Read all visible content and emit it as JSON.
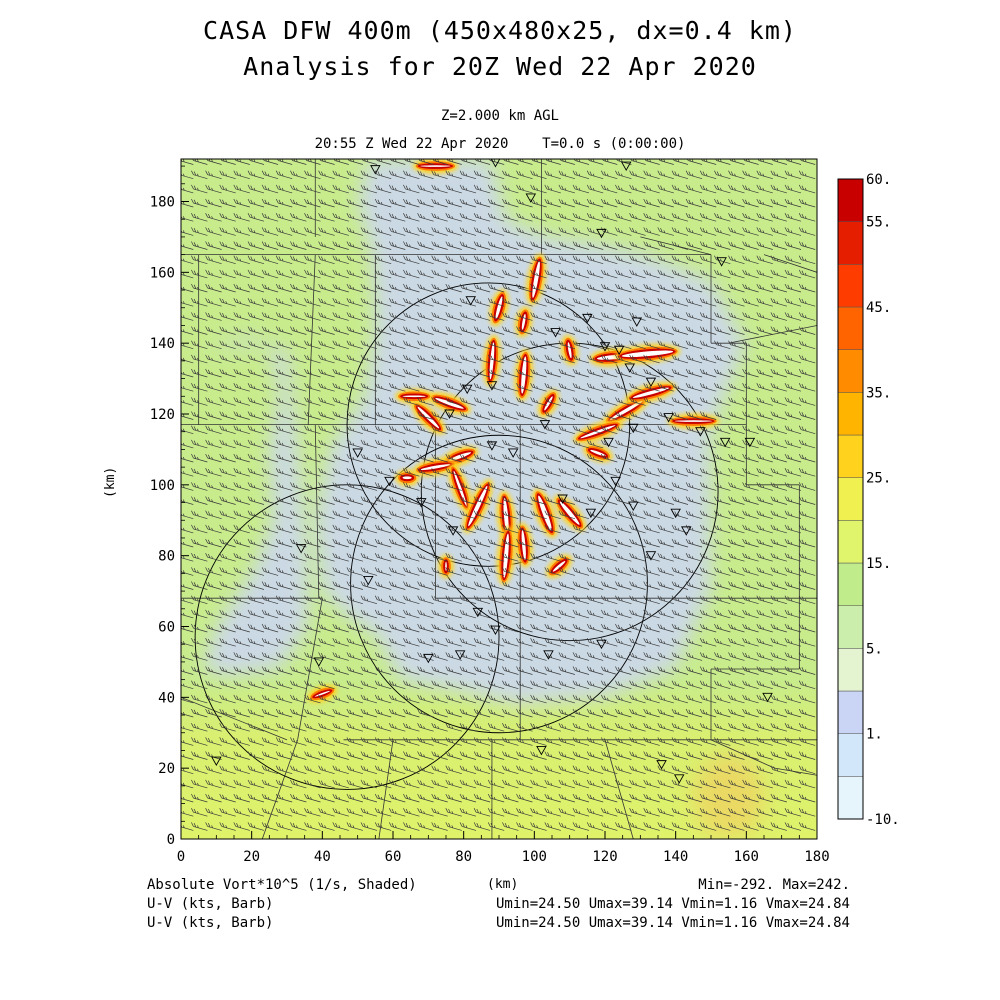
{
  "header": {
    "title_line1": "CASA DFW 400m (450x480x25, dx=0.4 km)",
    "title_line2": "Analysis for 20Z Wed 22 Apr 2020",
    "level": "Z=2.000 km AGL",
    "time": "20:55 Z Wed 22 Apr 2020    T=0.0 s (0:00:00)"
  },
  "footer": {
    "line1_left": "Absolute Vort*10^5 (1/s, Shaded)",
    "line1_right": "Min=-292. Max=242.",
    "line2_left": "U-V (kts, Barb)",
    "line2_right": "Umin=24.50 Umax=39.14 Vmin=1.16 Vmax=24.84",
    "line3_left": "U-V (kts, Barb)",
    "line3_right": "Umin=24.50 Umax=39.14 Vmin=1.16 Vmax=24.84"
  },
  "colors": {
    "bg_field": "#c8ec8c",
    "low_field": "#ccd6f4",
    "south_field": "#dcf06a",
    "hot": "#c80000",
    "warm": "#ff7a00",
    "barb": "#3a3a3a"
  },
  "chart_data": {
    "type": "heatmap",
    "xlabel": "(km)",
    "ylabel": "(km)",
    "xlim": [
      0,
      180
    ],
    "ylim": [
      0,
      192
    ],
    "xticks": [
      0,
      20,
      40,
      60,
      80,
      100,
      120,
      140,
      160,
      180
    ],
    "yticks": [
      0,
      20,
      40,
      60,
      80,
      100,
      120,
      140,
      160,
      180
    ],
    "colorbar": {
      "labels": [
        "60.",
        "55.",
        "45.",
        "35.",
        "25.",
        "15.",
        "5.",
        "1.",
        "-10."
      ],
      "label_values": [
        60,
        55,
        45,
        35,
        25,
        15,
        5,
        1,
        -10
      ],
      "levels": [
        -10,
        -5,
        1,
        3,
        5,
        10,
        15,
        20,
        25,
        30,
        35,
        40,
        45,
        50,
        55,
        60
      ],
      "colors": [
        "#e6f4fc",
        "#d2e8fa",
        "#cad4f4",
        "#e4f4d0",
        "#cbeeac",
        "#c0ec8c",
        "#e0f46c",
        "#f0f050",
        "#ffd21e",
        "#ffb400",
        "#ff8c00",
        "#ff6400",
        "#ff3c00",
        "#e61e00",
        "#c80000"
      ]
    },
    "radar_rings": [
      {
        "cx": 87,
        "cy": 117,
        "r": 40
      },
      {
        "cx": 110,
        "cy": 98,
        "r": 42
      },
      {
        "cx": 90,
        "cy": 72,
        "r": 42
      },
      {
        "cx": 47,
        "cy": 57,
        "r": 43
      }
    ],
    "vorticity_streaks": [
      {
        "x": 100.5,
        "y": 158,
        "len": 12,
        "ang": 80,
        "w": 2.4
      },
      {
        "x": 90,
        "y": 150,
        "len": 8,
        "ang": 75,
        "w": 2.2
      },
      {
        "x": 97,
        "y": 146,
        "len": 6,
        "ang": 80,
        "w": 2.0
      },
      {
        "x": 88,
        "y": 135,
        "len": 12,
        "ang": 85,
        "w": 2.2
      },
      {
        "x": 97,
        "y": 131,
        "len": 12,
        "ang": 85,
        "w": 2.4
      },
      {
        "x": 104,
        "y": 123,
        "len": 6,
        "ang": 60,
        "w": 2.0
      },
      {
        "x": 110,
        "y": 138,
        "len": 6,
        "ang": 100,
        "w": 2.0
      },
      {
        "x": 122,
        "y": 136,
        "len": 10,
        "ang": 5,
        "w": 2.4
      },
      {
        "x": 132,
        "y": 137,
        "len": 16,
        "ang": 5,
        "w": 2.6
      },
      {
        "x": 126,
        "y": 121,
        "len": 12,
        "ang": 30,
        "w": 2.2
      },
      {
        "x": 133,
        "y": 126,
        "len": 12,
        "ang": 15,
        "w": 2.2
      },
      {
        "x": 118,
        "y": 115,
        "len": 12,
        "ang": 20,
        "w": 2.0
      },
      {
        "x": 76,
        "y": 123,
        "len": 10,
        "ang": 160,
        "w": 2.2
      },
      {
        "x": 70,
        "y": 119,
        "len": 10,
        "ang": 135,
        "w": 2.2
      },
      {
        "x": 79,
        "y": 108,
        "len": 8,
        "ang": 20,
        "w": 2.2
      },
      {
        "x": 72,
        "y": 105,
        "len": 10,
        "ang": 10,
        "w": 2.0
      },
      {
        "x": 79,
        "y": 99,
        "len": 12,
        "ang": 110,
        "w": 2.0
      },
      {
        "x": 84,
        "y": 94,
        "len": 14,
        "ang": 65,
        "w": 2.4
      },
      {
        "x": 92,
        "y": 91,
        "len": 12,
        "ang": 95,
        "w": 2.4
      },
      {
        "x": 92,
        "y": 80,
        "len": 14,
        "ang": 85,
        "w": 2.4
      },
      {
        "x": 103,
        "y": 92,
        "len": 12,
        "ang": 110,
        "w": 2.6
      },
      {
        "x": 110,
        "y": 92,
        "len": 10,
        "ang": 130,
        "w": 2.4
      },
      {
        "x": 97,
        "y": 83,
        "len": 10,
        "ang": 95,
        "w": 2.2
      },
      {
        "x": 107,
        "y": 77,
        "len": 6,
        "ang": 40,
        "w": 2.0
      },
      {
        "x": 118,
        "y": 109,
        "len": 6,
        "ang": 160,
        "w": 2.0
      },
      {
        "x": 64,
        "y": 102,
        "len": 4,
        "ang": 0,
        "w": 2.0
      },
      {
        "x": 72,
        "y": 190,
        "len": 10,
        "ang": 0,
        "w": 1.6
      },
      {
        "x": 40,
        "y": 41,
        "len": 6,
        "ang": 20,
        "w": 1.6
      },
      {
        "x": 75,
        "y": 77,
        "len": 4,
        "ang": 90,
        "w": 1.6
      },
      {
        "x": 66,
        "y": 125,
        "len": 8,
        "ang": 0,
        "w": 1.6
      },
      {
        "x": 145,
        "y": 118,
        "len": 12,
        "ang": 0,
        "w": 1.6
      }
    ],
    "station_markers": [
      [
        55,
        189
      ],
      [
        89,
        191
      ],
      [
        126,
        190
      ],
      [
        99,
        181
      ],
      [
        119,
        171
      ],
      [
        153,
        163
      ],
      [
        82,
        152
      ],
      [
        129,
        146
      ],
      [
        120,
        139
      ],
      [
        106,
        143
      ],
      [
        115,
        147
      ],
      [
        124,
        138
      ],
      [
        133,
        129
      ],
      [
        127,
        133
      ],
      [
        81,
        127
      ],
      [
        88,
        128
      ],
      [
        76,
        120
      ],
      [
        88,
        111
      ],
      [
        94,
        109
      ],
      [
        103,
        117
      ],
      [
        121,
        112
      ],
      [
        128,
        116
      ],
      [
        138,
        119
      ],
      [
        147,
        115
      ],
      [
        161,
        112
      ],
      [
        154,
        112
      ],
      [
        50,
        109
      ],
      [
        59,
        101
      ],
      [
        68,
        95
      ],
      [
        77,
        87
      ],
      [
        108,
        96
      ],
      [
        123,
        101
      ],
      [
        128,
        94
      ],
      [
        140,
        92
      ],
      [
        143,
        87
      ],
      [
        116,
        92
      ],
      [
        133,
        80
      ],
      [
        53,
        73
      ],
      [
        84,
        64
      ],
      [
        89,
        59
      ],
      [
        70,
        51
      ],
      [
        79,
        52
      ],
      [
        104,
        52
      ],
      [
        119,
        55
      ],
      [
        34,
        82
      ],
      [
        10,
        22
      ],
      [
        102,
        25
      ],
      [
        136,
        21
      ],
      [
        141,
        17
      ],
      [
        166,
        40
      ],
      [
        39,
        50
      ]
    ],
    "wind_barbs": {
      "direction_deg": 250,
      "speed_kts": "24.50-39.14"
    }
  }
}
